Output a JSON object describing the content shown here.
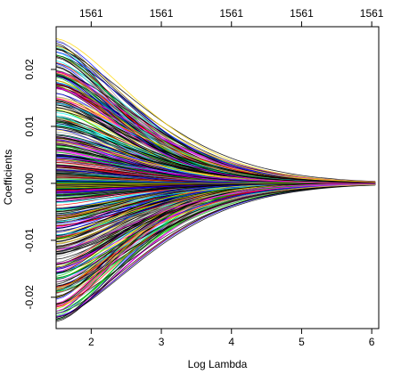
{
  "chart_data": {
    "type": "line",
    "title": "",
    "xlabel": "Log Lambda",
    "ylabel": "Coefficients",
    "xlim": [
      1.5,
      6.1
    ],
    "ylim": [
      -0.0255,
      0.0275
    ],
    "x_ticks": [
      2,
      3,
      4,
      5,
      6
    ],
    "x_tick_labels": [
      "2",
      "3",
      "4",
      "5",
      "6"
    ],
    "y_ticks": [
      -0.02,
      -0.01,
      0.0,
      0.01,
      0.02
    ],
    "y_tick_labels": [
      "-0.02",
      "-0.01",
      "0.00",
      "0.01",
      "0.02"
    ],
    "top_axis_ticks": [
      2,
      3,
      4,
      5,
      6
    ],
    "top_axis_labels": [
      "1561",
      "1561",
      "1561",
      "1561",
      "1561"
    ],
    "grid": false,
    "legend": "none",
    "path_x_range": [
      1.5,
      6.05
    ],
    "path_shape": "each coefficient decays smoothly toward 0 as Log Lambda increases, converging near Log Lambda = 6",
    "num_series": 1561,
    "series_start_values_range": [
      -0.0245,
      0.0255
    ],
    "palette": [
      "#000000",
      "#ff0000",
      "#00cd00",
      "#0000ff",
      "#00ffff",
      "#ff00ff",
      "#ffd700",
      "#9c9c9c"
    ]
  }
}
